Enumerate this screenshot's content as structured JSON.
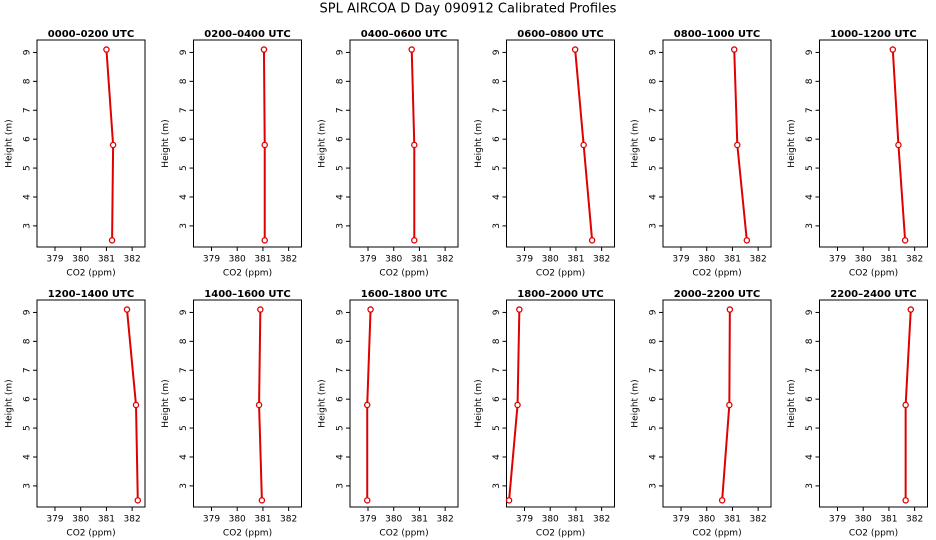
{
  "title": "SPL AIRCOA D  Day 090912  Calibrated Profiles",
  "chart_data": [
    {
      "type": "line",
      "title": "0000–0200 UTC",
      "x_label": "CO2 (ppm)",
      "y_label": "Height (m)",
      "x": [
        381.22,
        381.26,
        381.0
      ],
      "values": [
        2.5,
        5.8,
        9.1
      ],
      "color": "#e00000",
      "xlim": [
        378.3,
        382.5
      ],
      "xticks": [
        379,
        380,
        381,
        382
      ],
      "ylim": [
        2.27,
        9.43
      ],
      "yticks": [
        3,
        4,
        5,
        6,
        7,
        8,
        9
      ]
    },
    {
      "type": "line",
      "title": "0200–0400 UTC",
      "x_label": "CO2 (ppm)",
      "y_label": "Height (m)",
      "x": [
        381.07,
        381.07,
        381.04
      ],
      "values": [
        2.5,
        5.8,
        9.1
      ],
      "color": "#e00000",
      "xlim": [
        378.3,
        382.5
      ],
      "xticks": [
        379,
        380,
        381,
        382
      ],
      "ylim": [
        2.27,
        9.43
      ],
      "yticks": [
        3,
        4,
        5,
        6,
        7,
        8,
        9
      ]
    },
    {
      "type": "line",
      "title": "0400–0600 UTC",
      "x_label": "CO2 (ppm)",
      "y_label": "Height (m)",
      "x": [
        380.8,
        380.8,
        380.7
      ],
      "values": [
        2.5,
        5.8,
        9.1
      ],
      "color": "#e00000",
      "xlim": [
        378.3,
        382.5
      ],
      "xticks": [
        379,
        380,
        381,
        382
      ],
      "ylim": [
        2.27,
        9.43
      ],
      "yticks": [
        3,
        4,
        5,
        6,
        7,
        8,
        9
      ]
    },
    {
      "type": "line",
      "title": "0600–0800 UTC",
      "x_label": "CO2 (ppm)",
      "y_label": "Height (m)",
      "x": [
        381.63,
        381.3,
        380.97
      ],
      "values": [
        2.5,
        5.8,
        9.1
      ],
      "color": "#e00000",
      "xlim": [
        378.3,
        382.5
      ],
      "xticks": [
        379,
        380,
        381,
        382
      ],
      "ylim": [
        2.27,
        9.43
      ],
      "yticks": [
        3,
        4,
        5,
        6,
        7,
        8,
        9
      ]
    },
    {
      "type": "line",
      "title": "0800–1000 UTC",
      "x_label": "CO2 (ppm)",
      "y_label": "Height (m)",
      "x": [
        381.56,
        381.19,
        381.07
      ],
      "values": [
        2.5,
        5.8,
        9.1
      ],
      "color": "#e00000",
      "xlim": [
        378.3,
        382.5
      ],
      "xticks": [
        379,
        380,
        381,
        382
      ],
      "ylim": [
        2.27,
        9.43
      ],
      "yticks": [
        3,
        4,
        5,
        6,
        7,
        8,
        9
      ]
    },
    {
      "type": "line",
      "title": "1000–1200 UTC",
      "x_label": "CO2 (ppm)",
      "y_label": "Height (m)",
      "x": [
        381.63,
        381.37,
        381.15
      ],
      "values": [
        2.5,
        5.8,
        9.1
      ],
      "color": "#e00000",
      "xlim": [
        378.3,
        382.5
      ],
      "xticks": [
        379,
        380,
        381,
        382
      ],
      "ylim": [
        2.27,
        9.43
      ],
      "yticks": [
        3,
        4,
        5,
        6,
        7,
        8,
        9
      ]
    },
    {
      "type": "line",
      "title": "1200–1400 UTC",
      "x_label": "CO2 (ppm)",
      "y_label": "Height (m)",
      "x": [
        382.22,
        382.15,
        381.8
      ],
      "values": [
        2.5,
        5.8,
        9.1
      ],
      "color": "#e00000",
      "xlim": [
        378.3,
        382.5
      ],
      "xticks": [
        379,
        380,
        381,
        382
      ],
      "ylim": [
        2.27,
        9.43
      ],
      "yticks": [
        3,
        4,
        5,
        6,
        7,
        8,
        9
      ]
    },
    {
      "type": "line",
      "title": "1400–1600 UTC",
      "x_label": "CO2 (ppm)",
      "y_label": "Height (m)",
      "x": [
        380.96,
        380.85,
        380.9
      ],
      "values": [
        2.5,
        5.8,
        9.1
      ],
      "color": "#e00000",
      "xlim": [
        378.3,
        382.5
      ],
      "xticks": [
        379,
        380,
        381,
        382
      ],
      "ylim": [
        2.27,
        9.43
      ],
      "yticks": [
        3,
        4,
        5,
        6,
        7,
        8,
        9
      ]
    },
    {
      "type": "line",
      "title": "1600–1800 UTC",
      "x_label": "CO2 (ppm)",
      "y_label": "Height (m)",
      "x": [
        378.97,
        378.97,
        379.1
      ],
      "values": [
        2.5,
        5.8,
        9.1
      ],
      "color": "#e00000",
      "xlim": [
        378.3,
        382.5
      ],
      "xticks": [
        379,
        380,
        381,
        382
      ],
      "ylim": [
        2.27,
        9.43
      ],
      "yticks": [
        3,
        4,
        5,
        6,
        7,
        8,
        9
      ]
    },
    {
      "type": "line",
      "title": "1800–2000 UTC",
      "x_label": "CO2 (ppm)",
      "y_label": "Height (m)",
      "x": [
        378.4,
        378.73,
        378.8
      ],
      "values": [
        2.5,
        5.8,
        9.1
      ],
      "color": "#e00000",
      "xlim": [
        378.3,
        382.5
      ],
      "xticks": [
        379,
        380,
        381,
        382
      ],
      "ylim": [
        2.27,
        9.43
      ],
      "yticks": [
        3,
        4,
        5,
        6,
        7,
        8,
        9
      ]
    },
    {
      "type": "line",
      "title": "2000–2200 UTC",
      "x_label": "CO2 (ppm)",
      "y_label": "Height (m)",
      "x": [
        380.6,
        380.88,
        380.9
      ],
      "values": [
        2.5,
        5.8,
        9.1
      ],
      "color": "#e00000",
      "xlim": [
        378.3,
        382.5
      ],
      "xticks": [
        379,
        380,
        381,
        382
      ],
      "ylim": [
        2.27,
        9.43
      ],
      "yticks": [
        3,
        4,
        5,
        6,
        7,
        8,
        9
      ]
    },
    {
      "type": "line",
      "title": "2200–2400 UTC",
      "x_label": "CO2 (ppm)",
      "y_label": "Height (m)",
      "x": [
        381.65,
        381.65,
        381.85
      ],
      "values": [
        2.5,
        5.8,
        9.1
      ],
      "color": "#e00000",
      "xlim": [
        378.3,
        382.5
      ],
      "xticks": [
        379,
        380,
        381,
        382
      ],
      "ylim": [
        2.27,
        9.43
      ],
      "yticks": [
        3,
        4,
        5,
        6,
        7,
        8,
        9
      ]
    }
  ]
}
